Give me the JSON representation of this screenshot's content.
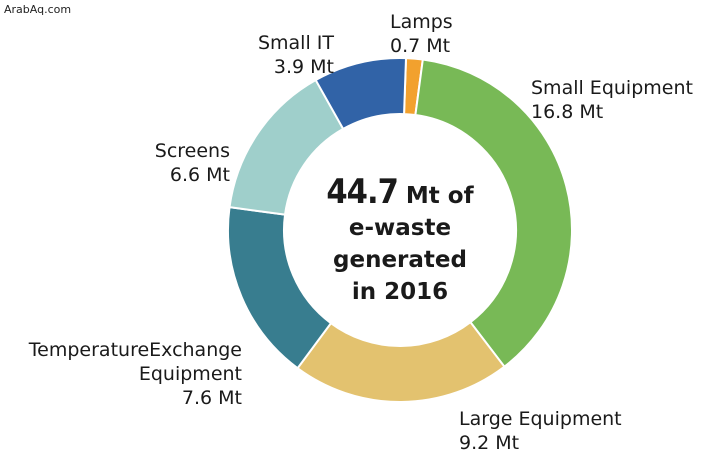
{
  "watermark": "ArabAq.com",
  "center": {
    "number": "44.7",
    "line1_rest": " Mt of",
    "line2": "e-waste",
    "line3": "generated",
    "line4": "in 2016"
  },
  "chart_data": {
    "type": "pie",
    "donut": true,
    "unit": "Mt",
    "slices": [
      {
        "name": "Lamps",
        "value": 0.7,
        "label": "0.7 Mt",
        "color": "#f2a12e"
      },
      {
        "name": "Small Equipment",
        "value": 16.8,
        "label": "16.8 Mt",
        "color": "#78b956"
      },
      {
        "name": "Large Equipment",
        "value": 9.2,
        "label": "9.2 Mt",
        "color": "#e3c26f"
      },
      {
        "name": "TemperatureExchange Equipment",
        "value": 7.6,
        "label": "7.6 Mt",
        "color": "#387d8f"
      },
      {
        "name": "Screens",
        "value": 6.6,
        "label": "6.6 Mt",
        "color": "#9fcfcb"
      },
      {
        "name": "Small IT",
        "value": 3.9,
        "label": "3.9 Mt",
        "color": "#3163a7"
      }
    ]
  },
  "labels": {
    "lamps": {
      "name": "Lamps",
      "value": "0.7 Mt"
    },
    "small_equipment": {
      "name": "Small Equipment",
      "value": "16.8 Mt"
    },
    "large_equipment": {
      "name": "Large Equipment",
      "value": "9.2 Mt"
    },
    "temp_exchange": {
      "line1": "TemperatureExchange",
      "line2": "Equipment",
      "value": "7.6 Mt"
    },
    "screens": {
      "name": "Screens",
      "value": "6.6 Mt"
    },
    "small_it": {
      "name": "Small IT",
      "value": "3.9 Mt"
    }
  }
}
